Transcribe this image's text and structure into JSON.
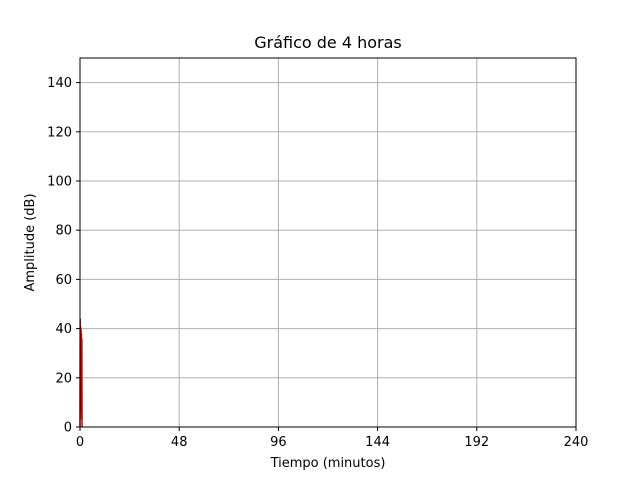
{
  "chart_data": {
    "type": "line",
    "title": "Gráfico de 4 horas",
    "xlabel": "Tiempo (minutos)",
    "ylabel": "Amplitude (dB)",
    "xlim": [
      0,
      240
    ],
    "ylim": [
      0,
      150
    ],
    "xticks": [
      0,
      48,
      96,
      144,
      192,
      240
    ],
    "yticks": [
      0,
      20,
      40,
      60,
      80,
      100,
      120,
      140
    ],
    "grid": true,
    "legend": "none",
    "series": [
      {
        "color": "#cc0000",
        "x": [
          0,
          0.1,
          0.2,
          0.3,
          0.4,
          0.5,
          0.6,
          0.7,
          0.8,
          0.9,
          1.0
        ],
        "y": [
          0,
          44,
          12,
          41,
          6,
          40,
          20,
          38,
          3,
          36,
          0
        ]
      }
    ]
  },
  "colors": {
    "series": "#cc0000",
    "grid": "#b0b0b0",
    "axes": "#000000",
    "background": "#ffffff"
  }
}
